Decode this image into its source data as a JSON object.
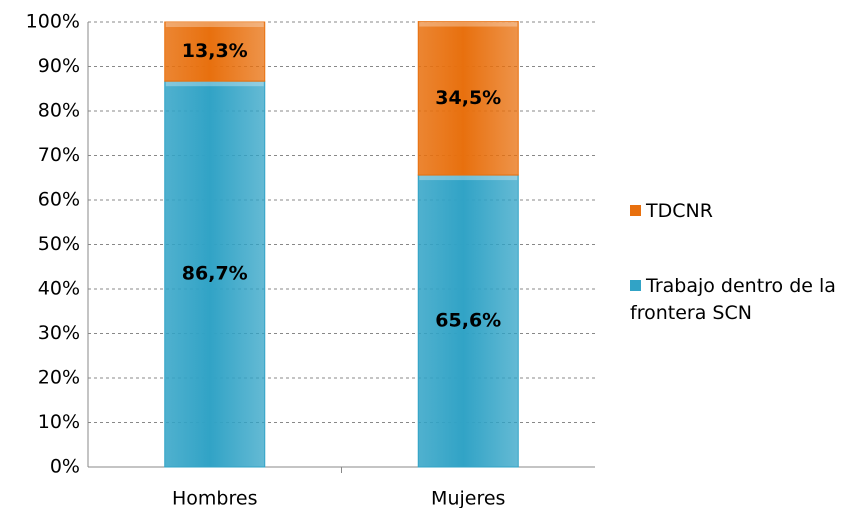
{
  "chart_data": {
    "type": "stacked_bar",
    "categories": [
      "Hombres",
      "Mujeres"
    ],
    "series": [
      {
        "name": "Trabajo dentro de la frontera SCN",
        "color": "#31a3c6",
        "values": [
          86.7,
          65.6
        ],
        "value_labels": [
          "86,7%",
          "65,6%"
        ]
      },
      {
        "name": "TDCNR",
        "color": "#e8700e",
        "values": [
          13.3,
          34.5
        ],
        "value_labels": [
          "13,3%",
          "34,5%"
        ]
      }
    ],
    "ylim": [
      0,
      100
    ],
    "yticks": [
      {
        "value": 0,
        "label": "0%"
      },
      {
        "value": 10,
        "label": "10%"
      },
      {
        "value": 20,
        "label": "20%"
      },
      {
        "value": 30,
        "label": "30%"
      },
      {
        "value": 40,
        "label": "40%"
      },
      {
        "value": 50,
        "label": "50%"
      },
      {
        "value": 60,
        "label": "60%"
      },
      {
        "value": 70,
        "label": "70%"
      },
      {
        "value": 80,
        "label": "80%"
      },
      {
        "value": 90,
        "label": "90%"
      },
      {
        "value": 100,
        "label": "100%"
      }
    ],
    "grid": true
  }
}
